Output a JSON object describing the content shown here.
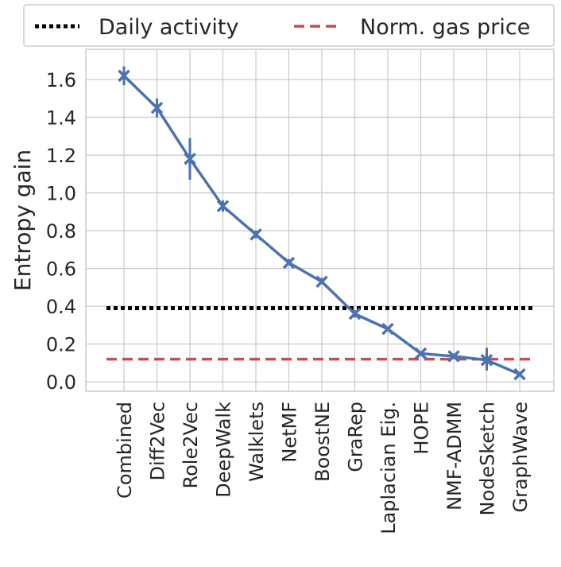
{
  "chart_data": {
    "type": "line",
    "categories": [
      "Combined",
      "Diff2Vec",
      "Role2Vec",
      "DeepWalk",
      "Walklets",
      "NetMF",
      "BoostNE",
      "GraRep",
      "Laplacian Eig.",
      "HOPE",
      "NMF-ADMM",
      "NodeSketch",
      "GraphWave"
    ],
    "series": [
      {
        "values": [
          1.62,
          1.45,
          1.18,
          0.93,
          0.78,
          0.63,
          0.53,
          0.36,
          0.28,
          0.15,
          0.135,
          0.115,
          0.04
        ],
        "err_low": [
          1.57,
          1.4,
          1.07,
          0.9,
          0.76,
          0.62,
          0.52,
          0.34,
          0.27,
          0.14,
          0.12,
          0.06,
          0.03
        ],
        "err_high": [
          1.67,
          1.5,
          1.29,
          0.96,
          0.8,
          0.65,
          0.55,
          0.38,
          0.29,
          0.16,
          0.15,
          0.18,
          0.05
        ],
        "color": "#4c72b0",
        "marker": "x"
      }
    ],
    "reference_lines": [
      {
        "name": "Daily activity",
        "value": 0.39,
        "style": "dotted",
        "color": "#000000"
      },
      {
        "name": "Norm. gas price",
        "value": 0.12,
        "style": "dashed",
        "color": "#c44e52"
      }
    ],
    "xlabel": "",
    "ylabel": "Entropy gain",
    "ylim": [
      -0.05,
      1.76
    ],
    "yticks": [
      0.0,
      0.2,
      0.4,
      0.6,
      0.8,
      1.0,
      1.2,
      1.4,
      1.6
    ],
    "ytick_labels": [
      "0.0",
      "0.2",
      "0.4",
      "0.6",
      "0.8",
      "1.0",
      "1.2",
      "1.4",
      "1.6"
    ],
    "grid": true,
    "legend_placement": "top",
    "grid_color": "#cccccc"
  }
}
